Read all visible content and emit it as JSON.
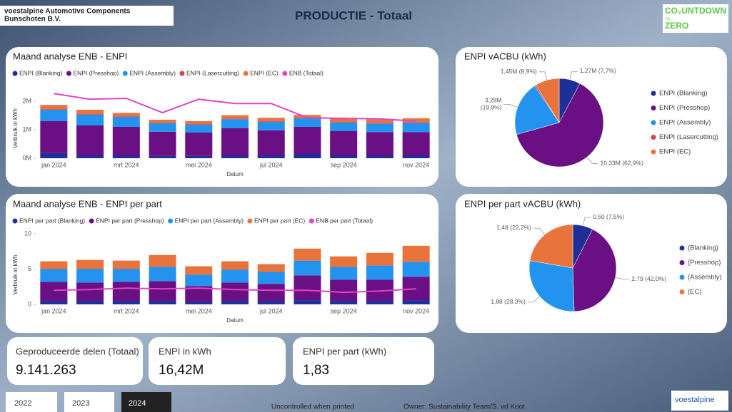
{
  "header": {
    "company": [
      "voestalpine Automotive Components",
      "Bunschoten B.V."
    ],
    "title": "PRODUCTIE - Totaal",
    "logo": [
      "CO₂UNTDOWN",
      "TO",
      "ZERO"
    ]
  },
  "chart_data": [
    {
      "type": "stacked_bar",
      "title": "Maand analyse ENB - ENPI",
      "ylabel": "Verbruik in kWh",
      "xlabel": "Datum",
      "categories": [
        "jan 2024",
        null,
        "mrt 2024",
        null,
        "mei 2024",
        null,
        "jul 2024",
        null,
        "sep 2024",
        null,
        "nov 2024"
      ],
      "ylim": [
        0,
        2500000
      ],
      "yticks": [
        {
          "value": 0,
          "label": "0M"
        },
        {
          "value": 1000000,
          "label": "1M"
        },
        {
          "value": 2000000,
          "label": "2M"
        }
      ],
      "series": [
        {
          "name": "ENPI (Blanking)",
          "color": "#1f2f98",
          "values": [
            180000,
            100000,
            100000,
            80000,
            80000,
            100000,
            100000,
            150000,
            100000,
            100000,
            100000
          ]
        },
        {
          "name": "ENPI (Presshop)",
          "color": "#6a0f84",
          "values": [
            1120000,
            1050000,
            1000000,
            850000,
            820000,
            950000,
            880000,
            950000,
            850000,
            820000,
            820000
          ]
        },
        {
          "name": "ENPI  (Assembly)",
          "color": "#2393ef",
          "values": [
            400000,
            380000,
            350000,
            300000,
            280000,
            320000,
            300000,
            300000,
            300000,
            300000,
            320000
          ]
        },
        {
          "name": "ENPI (Lasercutting)",
          "color": "#d5434e",
          "values": [
            20000,
            20000,
            20000,
            20000,
            20000,
            20000,
            20000,
            20000,
            20000,
            20000,
            20000
          ]
        },
        {
          "name": "ENPI (EC)",
          "color": "#e8743b",
          "values": [
            150000,
            150000,
            120000,
            100000,
            100000,
            120000,
            120000,
            100000,
            120000,
            120000,
            140000
          ]
        },
        {
          "name": "ENB (Totaal)",
          "color": "#e045c3",
          "type": "line",
          "values": [
            2270000,
            2070000,
            2100000,
            1600000,
            2070000,
            1920000,
            1920000,
            1420000,
            1400000,
            1380000,
            1300000
          ]
        }
      ]
    },
    {
      "type": "stacked_bar",
      "title": "Maand analyse ENB - ENPI per part",
      "ylabel": "Verbruik in kWh",
      "xlabel": "Datum",
      "categories": [
        "jan 2024",
        null,
        "mrt 2024",
        null,
        "mei 2024",
        null,
        "jul 2024",
        null,
        "sep 2024",
        null,
        "nov 2024"
      ],
      "ylim": [
        0,
        10
      ],
      "yticks": [
        0,
        5,
        10
      ],
      "series": [
        {
          "name": "ENPI per part (Blanking)",
          "color": "#1f2f98",
          "values": [
            0.5,
            0.5,
            0.5,
            0.5,
            0.4,
            0.5,
            0.5,
            0.6,
            0.5,
            0.5,
            0.6
          ]
        },
        {
          "name": "ENPI per part (Presshop)",
          "color": "#6a0f84",
          "values": [
            2.7,
            2.6,
            2.7,
            2.8,
            2.2,
            2.6,
            2.4,
            3.5,
            3.0,
            3.0,
            3.3
          ]
        },
        {
          "name": "ENPI per part  (Assembly)",
          "color": "#2393ef",
          "values": [
            1.8,
            1.9,
            1.8,
            2.0,
            1.6,
            1.8,
            1.7,
            2.1,
            1.8,
            2.0,
            2.1
          ]
        },
        {
          "name": "ENPI per part (EC)",
          "color": "#e8743b",
          "values": [
            1.1,
            1.3,
            1.2,
            1.7,
            1.2,
            1.2,
            1.1,
            1.7,
            1.5,
            1.8,
            2.3
          ]
        },
        {
          "name": "ENB per part (Totaal)",
          "color": "#e045c3",
          "type": "line",
          "values": [
            2.0,
            2.1,
            2.3,
            2.2,
            2.3,
            2.1,
            2.0,
            2.0,
            1.7,
            1.9,
            2.2
          ]
        }
      ]
    },
    {
      "type": "pie",
      "title": "ENPI vACBU (kWh)",
      "categories": [
        "ENPI (Blanking)",
        "ENPI (Presshop)",
        "ENPI  (Assembly)",
        "ENPI (Lasercutting)",
        "ENPI (EC)"
      ],
      "values": [
        1270000,
        10330000,
        3280000,
        90000,
        1450000
      ],
      "value_labels": [
        "1,27M (7,7%)",
        "10,33M (62,9%)",
        "3,28M\n(19,9%)",
        null,
        "1,45M (8,9%)"
      ],
      "colors": [
        "#1f2f98",
        "#6a0f84",
        "#2393ef",
        "#d5434e",
        "#e8743b"
      ]
    },
    {
      "type": "pie",
      "title": "ENPI per part vACBU (kWh)",
      "categories": [
        "(Blanking)",
        "(Presshop)",
        "(Assembly)",
        "(EC)"
      ],
      "values": [
        0.5,
        2.79,
        1.88,
        1.48
      ],
      "value_labels": [
        "0,50 (7,5%)",
        "2,79 (42,0%)",
        "1,88 (28,3%)",
        "1,48 (22,2%)"
      ],
      "colors": [
        "#1f2f98",
        "#6a0f84",
        "#2393ef",
        "#e8743b"
      ]
    }
  ],
  "kpis": [
    {
      "label": "Geproduceerde delen (Totaal)",
      "value": "9.141.263"
    },
    {
      "label": "ENPI in kWh",
      "value": "16,42M"
    },
    {
      "label": "ENPI per part (kWh)",
      "value": "1,83"
    }
  ],
  "years": [
    "2022",
    "2023",
    "2024"
  ],
  "footer": {
    "note": "Uncontrolled when printed",
    "owner": "Owner: Sustainability Team/S. vd Koot",
    "logo": "voestalpine"
  }
}
